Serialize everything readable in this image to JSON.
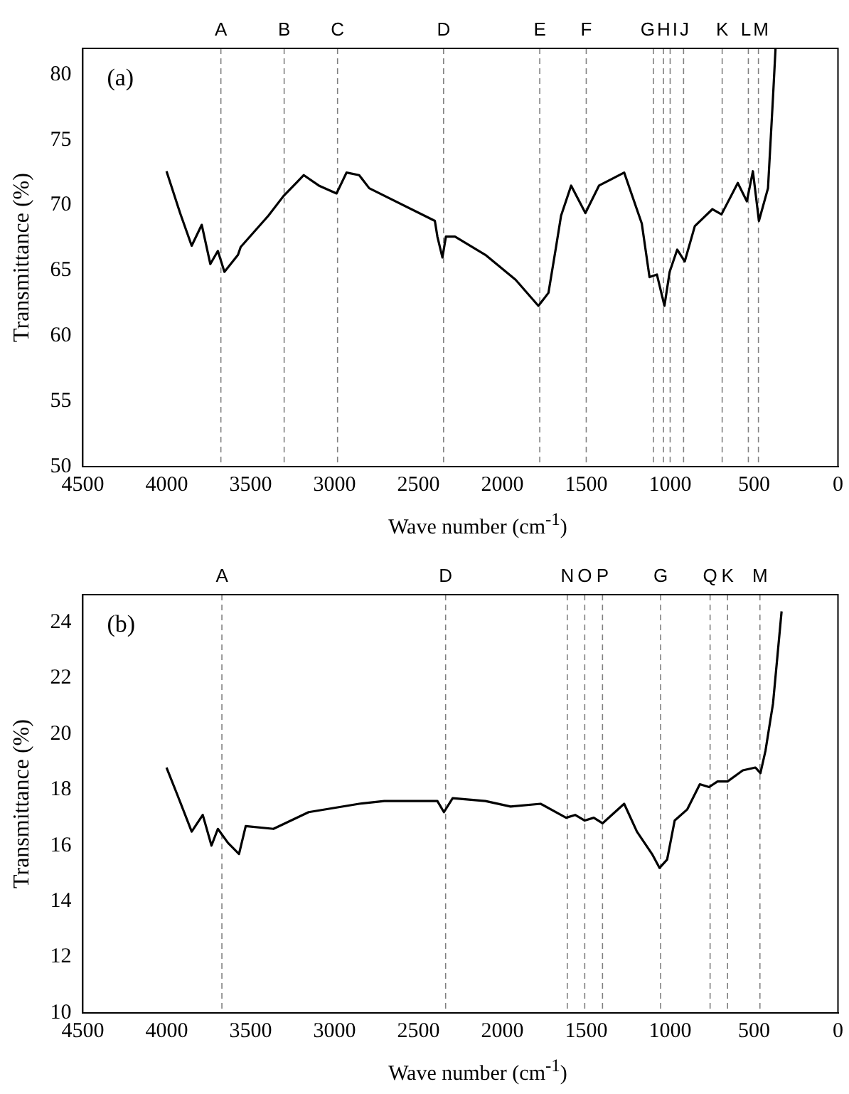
{
  "chart_data": [
    {
      "type": "line",
      "annotations": [
        "(a)"
      ],
      "xlabel": "Wave number (cm$^{-1}$)",
      "ylabel": "Transmittance (%)",
      "xlim": [
        4500,
        0
      ],
      "xticks": [
        4500,
        4000,
        3500,
        3000,
        2500,
        2000,
        1500,
        1000,
        500,
        0
      ],
      "ylim": [
        50,
        82
      ],
      "yticks": [
        50,
        55,
        60,
        65,
        70,
        75,
        80
      ],
      "grid": false,
      "legend": false,
      "x": [
        4001,
        3920,
        3851,
        3791,
        3740,
        3695,
        3656,
        3575,
        3559,
        3394,
        3304,
        3183,
        3093,
        2988,
        2928,
        2853,
        2793,
        2402,
        2387,
        2357,
        2336,
        2282,
        2101,
        1921,
        1785,
        1725,
        1680,
        1650,
        1590,
        1505,
        1424,
        1274,
        1169,
        1123,
        1079,
        1034,
        1003,
        958,
        913,
        853,
        748,
        694,
        597,
        543,
        507,
        471,
        417,
        387,
        372
      ],
      "series": [
        {
          "color": "#000000",
          "values": [
            72.6,
            69.4,
            66.9,
            68.5,
            65.5,
            66.5,
            64.9,
            66.2,
            66.8,
            69.2,
            70.7,
            72.3,
            71.5,
            70.9,
            72.5,
            72.3,
            71.3,
            68.8,
            67.6,
            66.0,
            67.6,
            67.6,
            66.2,
            64.3,
            62.3,
            63.3,
            66.8,
            69.2,
            71.5,
            69.4,
            71.5,
            72.5,
            68.6,
            64.5,
            64.7,
            62.3,
            64.9,
            66.6,
            65.7,
            68.4,
            69.7,
            69.3,
            71.7,
            70.3,
            72.6,
            68.8,
            71.3,
            78.3,
            82
          ]
        }
      ],
      "ref_lines": [
        {
          "axis": "x",
          "value": 3677,
          "label": "A",
          "color": "#808080",
          "line_style": "dashed"
        },
        {
          "axis": "x",
          "value": 3300,
          "label": "B",
          "color": "#808080",
          "line_style": "dashed"
        },
        {
          "axis": "x",
          "value": 2982,
          "label": "C",
          "color": "#808080",
          "line_style": "dashed"
        },
        {
          "axis": "x",
          "value": 2350,
          "label": "D",
          "color": "#808080",
          "line_style": "dashed"
        },
        {
          "axis": "x",
          "value": 1777,
          "label": "E",
          "color": "#808080",
          "line_style": "dashed"
        },
        {
          "axis": "x",
          "value": 1500,
          "label": "F",
          "color": "#808080",
          "line_style": "dashed"
        },
        {
          "axis": "x",
          "value": 1100,
          "label": "G",
          "color": "#808080",
          "line_style": "dashed"
        },
        {
          "axis": "x",
          "value": 1040,
          "label": "H",
          "color": "#808080",
          "line_style": "dashed"
        },
        {
          "axis": "x",
          "value": 1000,
          "label": "I",
          "color": "#808080",
          "line_style": "dashed"
        },
        {
          "axis": "x",
          "value": 920,
          "label": "J",
          "color": "#808080",
          "line_style": "dashed"
        },
        {
          "axis": "x",
          "value": 690,
          "label": "K",
          "color": "#808080",
          "line_style": "dashed"
        },
        {
          "axis": "x",
          "value": 534,
          "label": "L",
          "color": "#808080",
          "line_style": "dashed"
        },
        {
          "axis": "x",
          "value": 474,
          "label": "M",
          "color": "#808080",
          "line_style": "dashed"
        }
      ]
    },
    {
      "type": "line",
      "annotations": [
        "(b)"
      ],
      "xlabel": "Wave number (cm$^{-1}$)",
      "ylabel": "Transmittance (%)",
      "xlim": [
        4500,
        0
      ],
      "xticks": [
        4500,
        4000,
        3500,
        3000,
        2500,
        2000,
        1500,
        1000,
        500,
        0
      ],
      "ylim": [
        10,
        25
      ],
      "yticks": [
        10,
        12,
        14,
        16,
        18,
        20,
        22,
        24
      ],
      "grid": false,
      "legend": false,
      "x": [
        4001,
        3935,
        3851,
        3785,
        3733,
        3695,
        3635,
        3569,
        3529,
        3364,
        3154,
        2853,
        2703,
        2387,
        2348,
        2296,
        2101,
        1951,
        1772,
        1620,
        1566,
        1509,
        1455,
        1403,
        1274,
        1198,
        1108,
        1063,
        1018,
        973,
        898,
        823,
        768,
        718,
        658,
        567,
        492,
        462,
        432,
        387,
        336
      ],
      "series": [
        {
          "color": "#000000",
          "values": [
            18.8,
            17.8,
            16.5,
            17.1,
            16.0,
            16.6,
            16.1,
            15.7,
            16.7,
            16.6,
            17.2,
            17.5,
            17.6,
            17.6,
            17.2,
            17.7,
            17.6,
            17.4,
            17.5,
            17.0,
            17.1,
            16.9,
            17.0,
            16.8,
            17.5,
            16.5,
            15.7,
            15.2,
            15.5,
            16.9,
            17.3,
            18.2,
            18.1,
            18.3,
            18.3,
            18.7,
            18.8,
            18.6,
            19.4,
            21.1,
            24.4
          ]
        }
      ],
      "ref_lines": [
        {
          "axis": "x",
          "value": 3671,
          "label": "A",
          "color": "#808080",
          "line_style": "dashed"
        },
        {
          "axis": "x",
          "value": 2338,
          "label": "D",
          "color": "#808080",
          "line_style": "dashed"
        },
        {
          "axis": "x",
          "value": 1613,
          "label": "N",
          "color": "#808080",
          "line_style": "dashed"
        },
        {
          "axis": "x",
          "value": 1509,
          "label": "O",
          "color": "#808080",
          "line_style": "dashed"
        },
        {
          "axis": "x",
          "value": 1403,
          "label": "P",
          "color": "#808080",
          "line_style": "dashed"
        },
        {
          "axis": "x",
          "value": 1057,
          "label": "G",
          "color": "#808080",
          "line_style": "dashed"
        },
        {
          "axis": "x",
          "value": 762,
          "label": "Q",
          "color": "#808080",
          "line_style": "dashed"
        },
        {
          "axis": "x",
          "value": 658,
          "label": "K",
          "color": "#808080",
          "line_style": "dashed"
        },
        {
          "axis": "x",
          "value": 465,
          "label": "M",
          "color": "#808080",
          "line_style": "dashed"
        }
      ]
    }
  ]
}
